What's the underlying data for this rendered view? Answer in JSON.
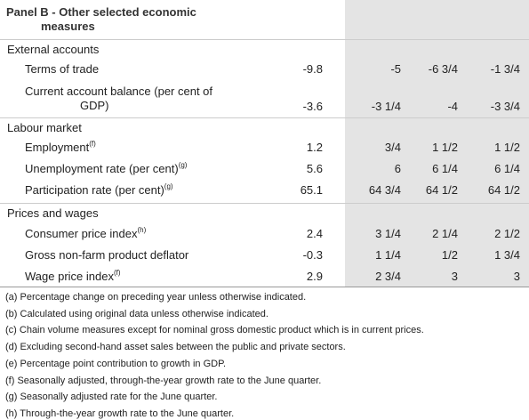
{
  "panel": {
    "title_line1": "Panel B - Other selected economic",
    "title_line2": "measures"
  },
  "sections": {
    "external": {
      "heading": "External accounts",
      "terms_of_trade": {
        "label": "Terms of trade",
        "values": [
          "-9.8",
          "-5",
          "-6 3/4",
          "-1 3/4"
        ]
      },
      "current_account": {
        "label_line1": "Current account balance (per cent of",
        "label_line2": "GDP)",
        "values": [
          "-3.6",
          "-3 1/4",
          "-4",
          "-3 3/4"
        ]
      }
    },
    "labour": {
      "heading": "Labour market",
      "employment": {
        "label": "Employment",
        "note": "(f)",
        "values": [
          "1.2",
          "3/4",
          "1 1/2",
          "1 1/2"
        ]
      },
      "unemployment": {
        "label": "Unemployment rate (per cent)",
        "note": "(g)",
        "values": [
          "5.6",
          "6",
          "6 1/4",
          "6 1/4"
        ]
      },
      "participation": {
        "label": "Participation rate (per cent)",
        "note": "(g)",
        "values": [
          "65.1",
          "64 3/4",
          "64 1/2",
          "64 1/2"
        ]
      }
    },
    "prices": {
      "heading": "Prices and wages",
      "cpi": {
        "label": "Consumer price index",
        "note": "(h)",
        "values": [
          "2.4",
          "3 1/4",
          "2 1/4",
          "2 1/2"
        ]
      },
      "deflator": {
        "label": "Gross non-farm product deflator",
        "values": [
          "-0.3",
          "1 1/4",
          "1/2",
          "1 3/4"
        ]
      },
      "wpi": {
        "label": "Wage price index",
        "note": "(f)",
        "values": [
          "2.9",
          "2 3/4",
          "3",
          "3"
        ]
      }
    }
  },
  "notes": [
    "(a) Percentage change on preceding year unless otherwise indicated.",
    "(b) Calculated using original data unless otherwise indicated.",
    "(c) Chain volume measures except for nominal gross domestic product which is in current prices.",
    "(d) Excluding second-hand asset sales between the public and private sectors.",
    "(e) Percentage point contribution to growth in GDP.",
    "(f) Seasonally adjusted, through-the-year growth rate to the June quarter.",
    "(g) Seasonally adjusted rate for the June quarter.",
    "(h) Through-the-year growth rate to the June quarter."
  ],
  "colors": {
    "forecast_shade": "#e4e4e4",
    "rule": "#cccccc",
    "text": "#222222"
  }
}
